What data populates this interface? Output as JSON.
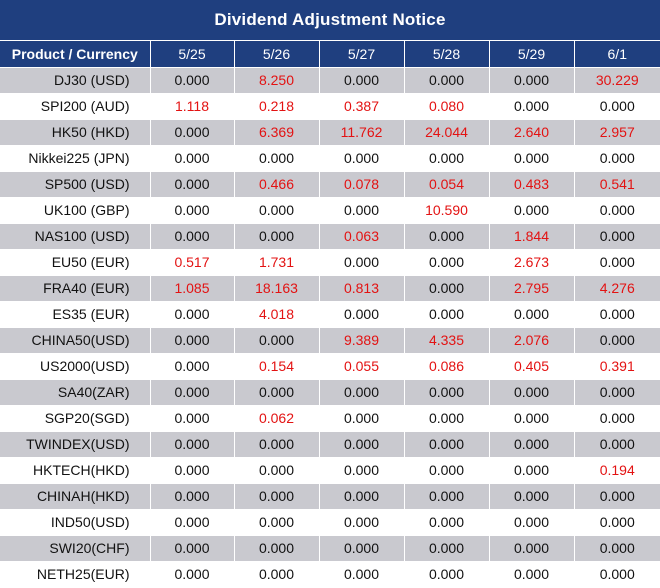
{
  "title": "Dividend Adjustment Notice",
  "columns": [
    "Product / Currency",
    "5/25",
    "5/26",
    "5/27",
    "5/28",
    "5/29",
    "6/1"
  ],
  "rows": [
    {
      "product": "DJ30 (USD)",
      "values": [
        "0.000",
        "8.250",
        "0.000",
        "0.000",
        "0.000",
        "30.229"
      ]
    },
    {
      "product": "SPI200 (AUD)",
      "values": [
        "1.118",
        "0.218",
        "0.387",
        "0.080",
        "0.000",
        "0.000"
      ]
    },
    {
      "product": "HK50 (HKD)",
      "values": [
        "0.000",
        "6.369",
        "11.762",
        "24.044",
        "2.640",
        "2.957"
      ]
    },
    {
      "product": "Nikkei225 (JPN)",
      "values": [
        "0.000",
        "0.000",
        "0.000",
        "0.000",
        "0.000",
        "0.000"
      ]
    },
    {
      "product": "SP500 (USD)",
      "values": [
        "0.000",
        "0.466",
        "0.078",
        "0.054",
        "0.483",
        "0.541"
      ]
    },
    {
      "product": "UK100 (GBP)",
      "values": [
        "0.000",
        "0.000",
        "0.000",
        "10.590",
        "0.000",
        "0.000"
      ]
    },
    {
      "product": "NAS100 (USD)",
      "values": [
        "0.000",
        "0.000",
        "0.063",
        "0.000",
        "1.844",
        "0.000"
      ]
    },
    {
      "product": "EU50 (EUR)",
      "values": [
        "0.517",
        "1.731",
        "0.000",
        "0.000",
        "2.673",
        "0.000"
      ]
    },
    {
      "product": "FRA40 (EUR)",
      "values": [
        "1.085",
        "18.163",
        "0.813",
        "0.000",
        "2.795",
        "4.276"
      ]
    },
    {
      "product": "ES35 (EUR)",
      "values": [
        "0.000",
        "4.018",
        "0.000",
        "0.000",
        "0.000",
        "0.000"
      ]
    },
    {
      "product": "CHINA50(USD)",
      "values": [
        "0.000",
        "0.000",
        "9.389",
        "4.335",
        "2.076",
        "0.000"
      ]
    },
    {
      "product": "US2000(USD)",
      "values": [
        "0.000",
        "0.154",
        "0.055",
        "0.086",
        "0.405",
        "0.391"
      ]
    },
    {
      "product": "SA40(ZAR)",
      "values": [
        "0.000",
        "0.000",
        "0.000",
        "0.000",
        "0.000",
        "0.000"
      ]
    },
    {
      "product": "SGP20(SGD)",
      "values": [
        "0.000",
        "0.062",
        "0.000",
        "0.000",
        "0.000",
        "0.000"
      ]
    },
    {
      "product": "TWINDEX(USD)",
      "values": [
        "0.000",
        "0.000",
        "0.000",
        "0.000",
        "0.000",
        "0.000"
      ]
    },
    {
      "product": "HKTECH(HKD)",
      "values": [
        "0.000",
        "0.000",
        "0.000",
        "0.000",
        "0.000",
        "0.194"
      ]
    },
    {
      "product": "CHINAH(HKD)",
      "values": [
        "0.000",
        "0.000",
        "0.000",
        "0.000",
        "0.000",
        "0.000"
      ]
    },
    {
      "product": "IND50(USD)",
      "values": [
        "0.000",
        "0.000",
        "0.000",
        "0.000",
        "0.000",
        "0.000"
      ]
    },
    {
      "product": "SWI20(CHF)",
      "values": [
        "0.000",
        "0.000",
        "0.000",
        "0.000",
        "0.000",
        "0.000"
      ]
    },
    {
      "product": "NETH25(EUR)",
      "values": [
        "0.000",
        "0.000",
        "0.000",
        "0.000",
        "0.000",
        "0.000"
      ]
    }
  ],
  "colors": {
    "header_bg": "#1f3f7f",
    "header_text": "#ffffff",
    "shade_row": "#c9c9cf",
    "positive_value": "#e31212",
    "zero_value": "#111111"
  }
}
